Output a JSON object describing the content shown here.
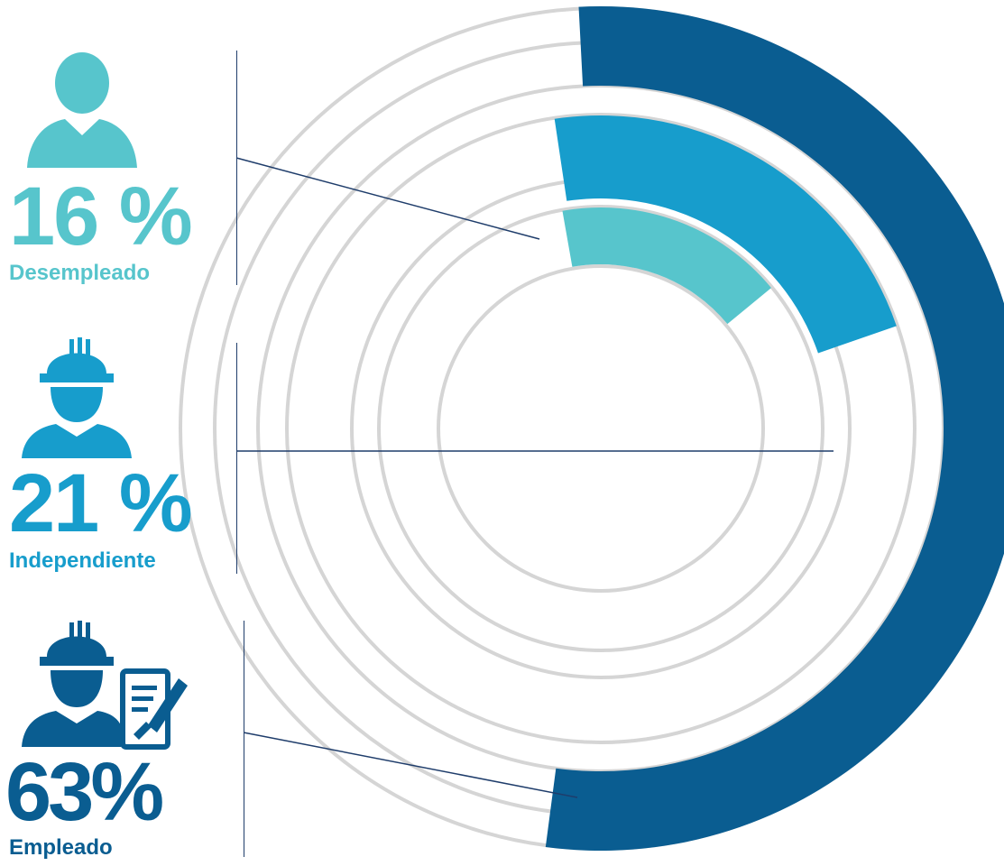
{
  "colors": {
    "desempleado": "#57c5cc",
    "independiente": "#179dcc",
    "empleado": "#0a5d91",
    "ring": "#d5d5d5",
    "leader": "#1f3d6b"
  },
  "chart_data": {
    "type": "radial-bar",
    "series": [
      {
        "name": "Desempleado",
        "value": 16,
        "pct_label": "16 %",
        "icon": "person-icon",
        "color": "#57c5cc"
      },
      {
        "name": "Independiente",
        "value": 21,
        "pct_label": "21 %",
        "icon": "worker-hardhat-icon",
        "color": "#179dcc"
      },
      {
        "name": "Empleado",
        "value": 63,
        "pct_label": "63%",
        "icon": "worker-contract-icon",
        "color": "#0a5d91"
      }
    ]
  }
}
